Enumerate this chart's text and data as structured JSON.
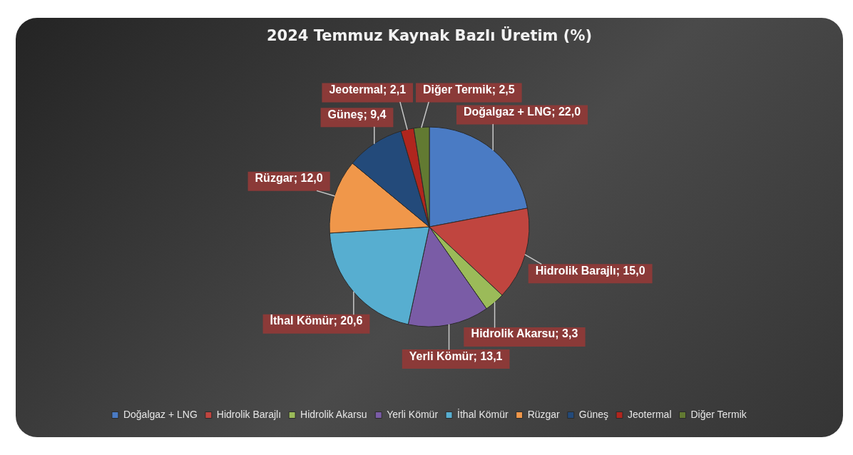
{
  "chart_data": {
    "type": "pie",
    "title": "2024 Temmuz Kaynak Bazlı Üretim (%)",
    "categories": [
      "Doğalgaz + LNG",
      "Hidrolik Barajlı",
      "Hidrolik Akarsu",
      "Yerli Kömür",
      "İthal Kömür",
      "Rüzgar",
      "Güneş",
      "Jeotermal",
      "Diğer Termik"
    ],
    "values": [
      22.0,
      15.0,
      3.3,
      13.1,
      20.6,
      12.0,
      9.4,
      2.1,
      2.5
    ],
    "value_labels": [
      "Doğalgaz + LNG; 22,0",
      "Hidrolik Barajlı; 15,0",
      "Hidrolik Akarsu; 3,3",
      "Yerli Kömür; 13,1",
      "İthal Kömür; 20,6",
      "Rüzgar; 12,0",
      "Güneş; 9,4",
      "Jeotermal; 2,1",
      "Diğer Termik; 2,5"
    ],
    "colors": [
      "#4a7bc4",
      "#c0453f",
      "#9bbb59",
      "#7a5ca6",
      "#57aed0",
      "#f0974a",
      "#234a7a",
      "#b0261e",
      "#627a32"
    ],
    "legend": "bottom"
  }
}
